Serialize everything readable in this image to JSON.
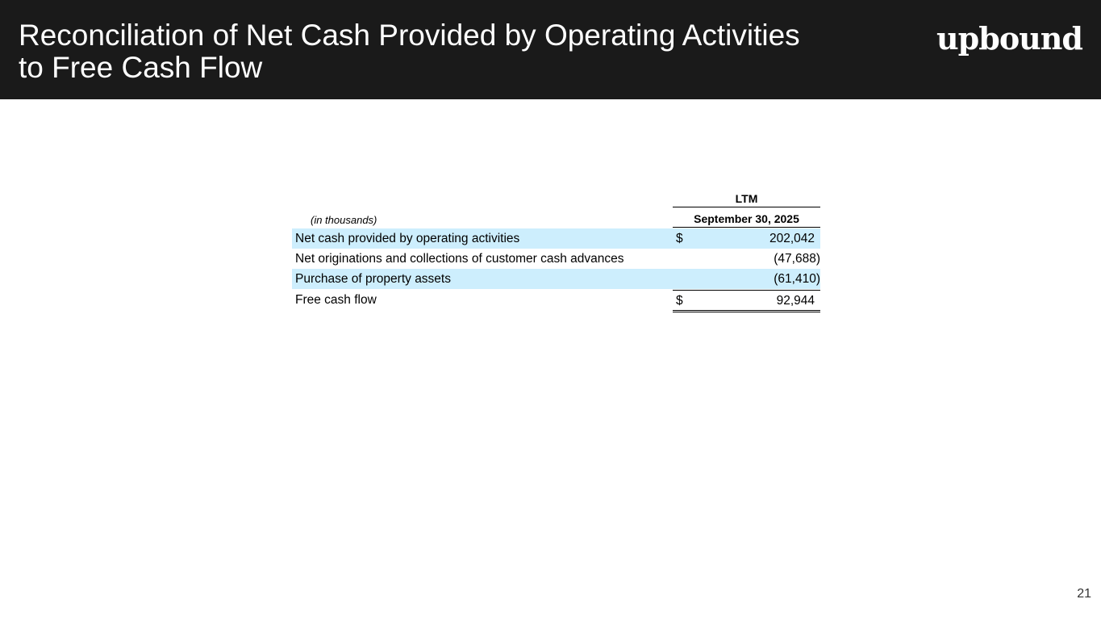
{
  "slide": {
    "title_line1": "Reconciliation of Net Cash Provided by Operating Activities",
    "title_line2": "to Free Cash Flow",
    "logo_text": "upbound",
    "page_number": "21"
  },
  "table": {
    "units_note": "(in thousands)",
    "column_group": "LTM",
    "column_header": "September 30, 2025",
    "rows": [
      {
        "label": "Net cash provided by operating activities",
        "currency": "$",
        "value": "202,042"
      },
      {
        "label": "Net originations and collections of customer cash advances",
        "currency": "",
        "value": "(47,688)"
      },
      {
        "label": "Purchase of property assets",
        "currency": "",
        "value": "(61,410)"
      },
      {
        "label": "Free cash flow",
        "currency": "$",
        "value": "92,944"
      }
    ]
  },
  "colors": {
    "header_background": "#1a1a1a",
    "row_shading": "#cdeefd",
    "text": "#000000"
  }
}
